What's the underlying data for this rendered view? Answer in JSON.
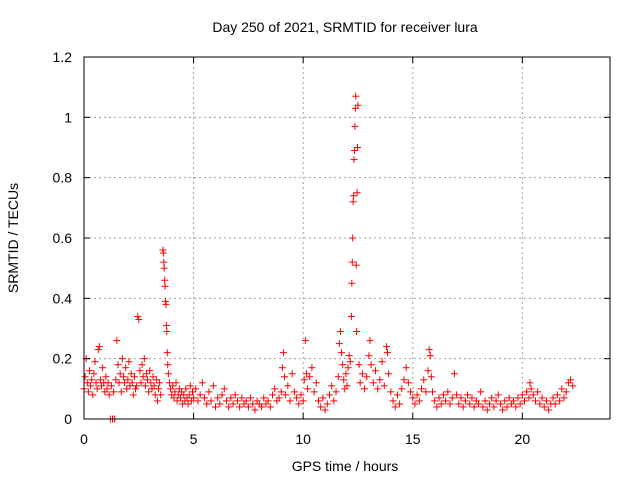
{
  "chart_data": {
    "type": "scatter",
    "title": "Day 250 of 2021, SRMTID for receiver lura",
    "xlabel": "GPS time / hours",
    "ylabel": "SRMTID / TECUs",
    "xlim": [
      0,
      24
    ],
    "ylim": [
      0,
      1.2
    ],
    "xticks": [
      0,
      5,
      10,
      15,
      20
    ],
    "yticks": [
      0,
      0.2,
      0.4,
      0.6,
      0.8,
      1,
      1.2
    ],
    "ytick_labels": [
      "0",
      "0.2",
      "0.4",
      "0.6",
      "0.8",
      "1",
      "1.2"
    ],
    "xtick_labels": [
      "0",
      "5",
      "10",
      "15",
      "20"
    ],
    "grid": true,
    "marker": "+",
    "color": "#ff0000",
    "series": [
      {
        "name": "SRMTID",
        "points": [
          [
            0.0,
            0.1
          ],
          [
            0.05,
            0.14
          ],
          [
            0.1,
            0.2
          ],
          [
            0.15,
            0.12
          ],
          [
            0.2,
            0.09
          ],
          [
            0.25,
            0.16
          ],
          [
            0.3,
            0.11
          ],
          [
            0.35,
            0.13
          ],
          [
            0.4,
            0.08
          ],
          [
            0.45,
            0.15
          ],
          [
            0.5,
            0.19
          ],
          [
            0.55,
            0.12
          ],
          [
            0.6,
            0.1
          ],
          [
            0.65,
            0.23
          ],
          [
            0.7,
            0.24
          ],
          [
            0.75,
            0.13
          ],
          [
            0.8,
            0.11
          ],
          [
            0.85,
            0.17
          ],
          [
            0.9,
            0.12
          ],
          [
            0.95,
            0.09
          ],
          [
            1.0,
            0.14
          ],
          [
            1.05,
            0.1
          ],
          [
            1.1,
            0.12
          ],
          [
            1.15,
            0.08
          ],
          [
            1.2,
            0.0
          ],
          [
            1.25,
            0.11
          ],
          [
            1.3,
            0.0
          ],
          [
            1.35,
            0.09
          ],
          [
            1.4,
            0.0
          ],
          [
            1.45,
            0.13
          ],
          [
            1.5,
            0.26
          ],
          [
            1.55,
            0.18
          ],
          [
            1.6,
            0.12
          ],
          [
            1.65,
            0.15
          ],
          [
            1.7,
            0.09
          ],
          [
            1.75,
            0.2
          ],
          [
            1.8,
            0.14
          ],
          [
            1.85,
            0.12
          ],
          [
            1.9,
            0.17
          ],
          [
            1.95,
            0.1
          ],
          [
            2.0,
            0.13
          ],
          [
            2.05,
            0.19
          ],
          [
            2.1,
            0.11
          ],
          [
            2.15,
            0.15
          ],
          [
            2.2,
            0.12
          ],
          [
            2.25,
            0.08
          ],
          [
            2.3,
            0.14
          ],
          [
            2.35,
            0.1
          ],
          [
            2.4,
            0.11
          ],
          [
            2.45,
            0.34
          ],
          [
            2.5,
            0.33
          ],
          [
            2.55,
            0.16
          ],
          [
            2.6,
            0.12
          ],
          [
            2.65,
            0.18
          ],
          [
            2.7,
            0.14
          ],
          [
            2.75,
            0.2
          ],
          [
            2.8,
            0.11
          ],
          [
            2.85,
            0.15
          ],
          [
            2.9,
            0.13
          ],
          [
            2.95,
            0.09
          ],
          [
            3.0,
            0.16
          ],
          [
            3.05,
            0.12
          ],
          [
            3.1,
            0.1
          ],
          [
            3.15,
            0.14
          ],
          [
            3.2,
            0.11
          ],
          [
            3.25,
            0.08
          ],
          [
            3.3,
            0.13
          ],
          [
            3.35,
            0.06
          ],
          [
            3.4,
            0.1
          ],
          [
            3.45,
            0.12
          ],
          [
            3.5,
            0.08
          ],
          [
            3.6,
            0.56
          ],
          [
            3.62,
            0.55
          ],
          [
            3.64,
            0.52
          ],
          [
            3.66,
            0.5
          ],
          [
            3.68,
            0.46
          ],
          [
            3.7,
            0.44
          ],
          [
            3.72,
            0.39
          ],
          [
            3.74,
            0.38
          ],
          [
            3.76,
            0.31
          ],
          [
            3.78,
            0.29
          ],
          [
            3.8,
            0.22
          ],
          [
            3.82,
            0.18
          ],
          [
            3.85,
            0.15
          ],
          [
            3.9,
            0.12
          ],
          [
            3.95,
            0.1
          ],
          [
            4.0,
            0.08
          ],
          [
            4.05,
            0.11
          ],
          [
            4.1,
            0.07
          ],
          [
            4.15,
            0.09
          ],
          [
            4.2,
            0.12
          ],
          [
            4.25,
            0.06
          ],
          [
            4.3,
            0.08
          ],
          [
            4.35,
            0.1
          ],
          [
            4.4,
            0.07
          ],
          [
            4.45,
            0.09
          ],
          [
            4.5,
            0.05
          ],
          [
            4.55,
            0.08
          ],
          [
            4.6,
            0.06
          ],
          [
            4.65,
            0.1
          ],
          [
            4.7,
            0.07
          ],
          [
            4.75,
            0.05
          ],
          [
            4.8,
            0.08
          ],
          [
            4.85,
            0.11
          ],
          [
            4.9,
            0.06
          ],
          [
            4.95,
            0.09
          ],
          [
            5.0,
            0.07
          ],
          [
            5.1,
            0.1
          ],
          [
            5.2,
            0.06
          ],
          [
            5.3,
            0.08
          ],
          [
            5.4,
            0.12
          ],
          [
            5.5,
            0.07
          ],
          [
            5.6,
            0.05
          ],
          [
            5.7,
            0.09
          ],
          [
            5.8,
            0.06
          ],
          [
            5.9,
            0.11
          ],
          [
            6.0,
            0.04
          ],
          [
            6.1,
            0.07
          ],
          [
            6.2,
            0.05
          ],
          [
            6.3,
            0.08
          ],
          [
            6.4,
            0.1
          ],
          [
            6.5,
            0.06
          ],
          [
            6.6,
            0.04
          ],
          [
            6.7,
            0.07
          ],
          [
            6.8,
            0.05
          ],
          [
            6.9,
            0.08
          ],
          [
            7.0,
            0.06
          ],
          [
            7.1,
            0.04
          ],
          [
            7.2,
            0.07
          ],
          [
            7.3,
            0.05
          ],
          [
            7.4,
            0.06
          ],
          [
            7.5,
            0.04
          ],
          [
            7.6,
            0.07
          ],
          [
            7.7,
            0.05
          ],
          [
            7.8,
            0.03
          ],
          [
            7.9,
            0.06
          ],
          [
            8.0,
            0.05
          ],
          [
            8.1,
            0.04
          ],
          [
            8.2,
            0.07
          ],
          [
            8.3,
            0.05
          ],
          [
            8.4,
            0.06
          ],
          [
            8.5,
            0.04
          ],
          [
            8.6,
            0.08
          ],
          [
            8.7,
            0.1
          ],
          [
            8.8,
            0.06
          ],
          [
            8.9,
            0.07
          ],
          [
            9.0,
            0.09
          ],
          [
            9.05,
            0.17
          ],
          [
            9.1,
            0.22
          ],
          [
            9.15,
            0.14
          ],
          [
            9.2,
            0.08
          ],
          [
            9.3,
            0.11
          ],
          [
            9.4,
            0.06
          ],
          [
            9.5,
            0.15
          ],
          [
            9.6,
            0.09
          ],
          [
            9.7,
            0.07
          ],
          [
            9.8,
            0.05
          ],
          [
            9.9,
            0.08
          ],
          [
            10.0,
            0.06
          ],
          [
            10.05,
            0.13
          ],
          [
            10.1,
            0.26
          ],
          [
            10.15,
            0.15
          ],
          [
            10.2,
            0.1
          ],
          [
            10.3,
            0.14
          ],
          [
            10.4,
            0.17
          ],
          [
            10.5,
            0.09
          ],
          [
            10.6,
            0.12
          ],
          [
            10.7,
            0.06
          ],
          [
            10.8,
            0.04
          ],
          [
            10.9,
            0.07
          ],
          [
            11.0,
            0.03
          ],
          [
            11.1,
            0.05
          ],
          [
            11.2,
            0.08
          ],
          [
            11.3,
            0.11
          ],
          [
            11.4,
            0.06
          ],
          [
            11.5,
            0.09
          ],
          [
            11.6,
            0.14
          ],
          [
            11.65,
            0.25
          ],
          [
            11.7,
            0.29
          ],
          [
            11.75,
            0.22
          ],
          [
            11.8,
            0.18
          ],
          [
            11.85,
            0.13
          ],
          [
            11.9,
            0.1
          ],
          [
            11.95,
            0.15
          ],
          [
            12.0,
            0.11
          ],
          [
            12.05,
            0.17
          ],
          [
            12.1,
            0.21
          ],
          [
            12.15,
            0.19
          ],
          [
            12.2,
            0.34
          ],
          [
            12.22,
            0.45
          ],
          [
            12.24,
            0.52
          ],
          [
            12.26,
            0.6
          ],
          [
            12.28,
            0.72
          ],
          [
            12.3,
            0.74
          ],
          [
            12.32,
            0.86
          ],
          [
            12.34,
            0.89
          ],
          [
            12.36,
            0.97
          ],
          [
            12.38,
            1.03
          ],
          [
            12.4,
            1.07
          ],
          [
            12.42,
            0.51
          ],
          [
            12.44,
            0.29
          ],
          [
            12.46,
            0.75
          ],
          [
            12.48,
            0.9
          ],
          [
            12.5,
            1.04
          ],
          [
            12.55,
            0.18
          ],
          [
            12.6,
            0.12
          ],
          [
            12.7,
            0.15
          ],
          [
            12.8,
            0.1
          ],
          [
            12.9,
            0.14
          ],
          [
            13.0,
            0.21
          ],
          [
            13.05,
            0.26
          ],
          [
            13.1,
            0.18
          ],
          [
            13.2,
            0.12
          ],
          [
            13.3,
            0.16
          ],
          [
            13.4,
            0.1
          ],
          [
            13.5,
            0.13
          ],
          [
            13.6,
            0.19
          ],
          [
            13.7,
            0.11
          ],
          [
            13.8,
            0.24
          ],
          [
            13.85,
            0.22
          ],
          [
            13.9,
            0.15
          ],
          [
            14.0,
            0.09
          ],
          [
            14.1,
            0.06
          ],
          [
            14.2,
            0.04
          ],
          [
            14.3,
            0.08
          ],
          [
            14.4,
            0.05
          ],
          [
            14.5,
            0.1
          ],
          [
            14.6,
            0.13
          ],
          [
            14.7,
            0.17
          ],
          [
            14.8,
            0.12
          ],
          [
            14.9,
            0.09
          ],
          [
            15.0,
            0.07
          ],
          [
            15.1,
            0.05
          ],
          [
            15.2,
            0.08
          ],
          [
            15.3,
            0.06
          ],
          [
            15.4,
            0.1
          ],
          [
            15.5,
            0.13
          ],
          [
            15.6,
            0.09
          ],
          [
            15.7,
            0.16
          ],
          [
            15.75,
            0.23
          ],
          [
            15.8,
            0.21
          ],
          [
            15.85,
            0.14
          ],
          [
            15.9,
            0.09
          ],
          [
            16.0,
            0.06
          ],
          [
            16.1,
            0.04
          ],
          [
            16.2,
            0.07
          ],
          [
            16.3,
            0.05
          ],
          [
            16.4,
            0.08
          ],
          [
            16.5,
            0.06
          ],
          [
            16.6,
            0.09
          ],
          [
            16.7,
            0.05
          ],
          [
            16.8,
            0.07
          ],
          [
            16.9,
            0.15
          ],
          [
            17.0,
            0.08
          ],
          [
            17.1,
            0.05
          ],
          [
            17.2,
            0.07
          ],
          [
            17.3,
            0.04
          ],
          [
            17.4,
            0.06
          ],
          [
            17.5,
            0.08
          ],
          [
            17.6,
            0.05
          ],
          [
            17.7,
            0.07
          ],
          [
            17.8,
            0.04
          ],
          [
            17.9,
            0.06
          ],
          [
            18.0,
            0.05
          ],
          [
            18.1,
            0.09
          ],
          [
            18.2,
            0.04
          ],
          [
            18.3,
            0.06
          ],
          [
            18.4,
            0.03
          ],
          [
            18.5,
            0.05
          ],
          [
            18.6,
            0.07
          ],
          [
            18.7,
            0.04
          ],
          [
            18.8,
            0.06
          ],
          [
            18.9,
            0.08
          ],
          [
            19.0,
            0.05
          ],
          [
            19.1,
            0.03
          ],
          [
            19.2,
            0.06
          ],
          [
            19.3,
            0.04
          ],
          [
            19.4,
            0.07
          ],
          [
            19.5,
            0.05
          ],
          [
            19.6,
            0.06
          ],
          [
            19.7,
            0.04
          ],
          [
            19.8,
            0.07
          ],
          [
            19.9,
            0.05
          ],
          [
            20.0,
            0.08
          ],
          [
            20.1,
            0.06
          ],
          [
            20.2,
            0.09
          ],
          [
            20.3,
            0.07
          ],
          [
            20.35,
            0.12
          ],
          [
            20.4,
            0.1
          ],
          [
            20.5,
            0.08
          ],
          [
            20.6,
            0.06
          ],
          [
            20.7,
            0.09
          ],
          [
            20.8,
            0.05
          ],
          [
            20.9,
            0.07
          ],
          [
            21.0,
            0.04
          ],
          [
            21.1,
            0.06
          ],
          [
            21.2,
            0.03
          ],
          [
            21.3,
            0.05
          ],
          [
            21.4,
            0.07
          ],
          [
            21.5,
            0.05
          ],
          [
            21.6,
            0.08
          ],
          [
            21.7,
            0.06
          ],
          [
            21.8,
            0.1
          ],
          [
            21.9,
            0.07
          ],
          [
            22.0,
            0.09
          ],
          [
            22.1,
            0.12
          ],
          [
            22.2,
            0.13
          ],
          [
            22.3,
            0.11
          ]
        ]
      }
    ]
  }
}
